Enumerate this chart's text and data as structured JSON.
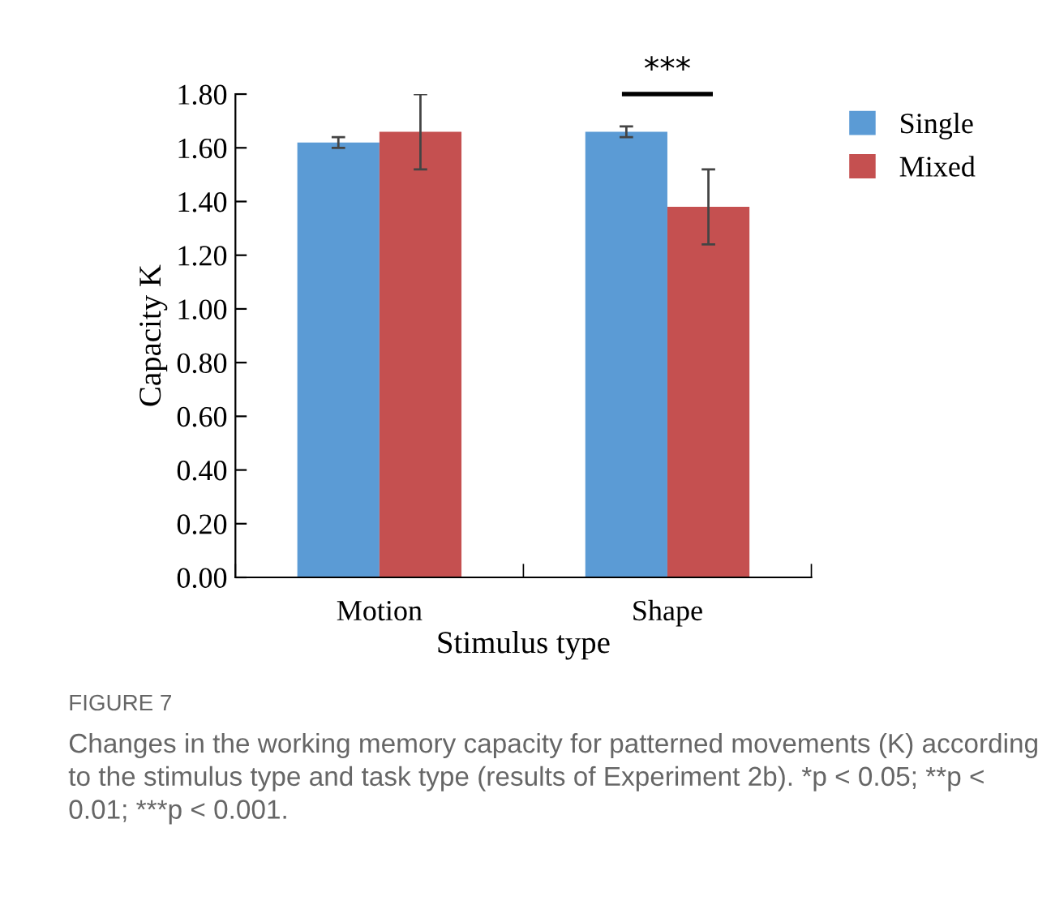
{
  "chart_data": {
    "type": "bar",
    "xlabel": "Stimulus type",
    "ylabel": "Capacity K",
    "categories": [
      "Motion",
      "Shape"
    ],
    "series": [
      {
        "name": "Single",
        "color": "#5b9bd5",
        "values": [
          1.62,
          1.66
        ],
        "errors": [
          0.02,
          0.02
        ]
      },
      {
        "name": "Mixed",
        "color": "#c55050",
        "values": [
          1.66,
          1.38
        ],
        "errors": [
          0.14,
          0.14
        ]
      }
    ],
    "ylim": [
      0,
      1.8
    ],
    "yticks": [
      {
        "value": 0,
        "label": "0.00"
      },
      {
        "value": 0.2,
        "label": "0.20"
      },
      {
        "value": 0.4,
        "label": "0.40"
      },
      {
        "value": 0.6,
        "label": "0.60"
      },
      {
        "value": 0.8,
        "label": "0.80"
      },
      {
        "value": 1.0,
        "label": "1.00"
      },
      {
        "value": 1.2,
        "label": "1.20"
      },
      {
        "value": 1.4,
        "label": "1.40"
      },
      {
        "value": 1.6,
        "label": "1.60"
      },
      {
        "value": 1.8,
        "label": "1.80"
      }
    ],
    "grid": false,
    "legend": "top right",
    "annotations": [
      "***",
      "FIGURE 7",
      "Changes in the working memory capacity for patterned movements (K) according to the stimulus type and task type (results of Experiment 2b). *p < 0.05; **p < 0.01; ***p < 0.001."
    ]
  }
}
